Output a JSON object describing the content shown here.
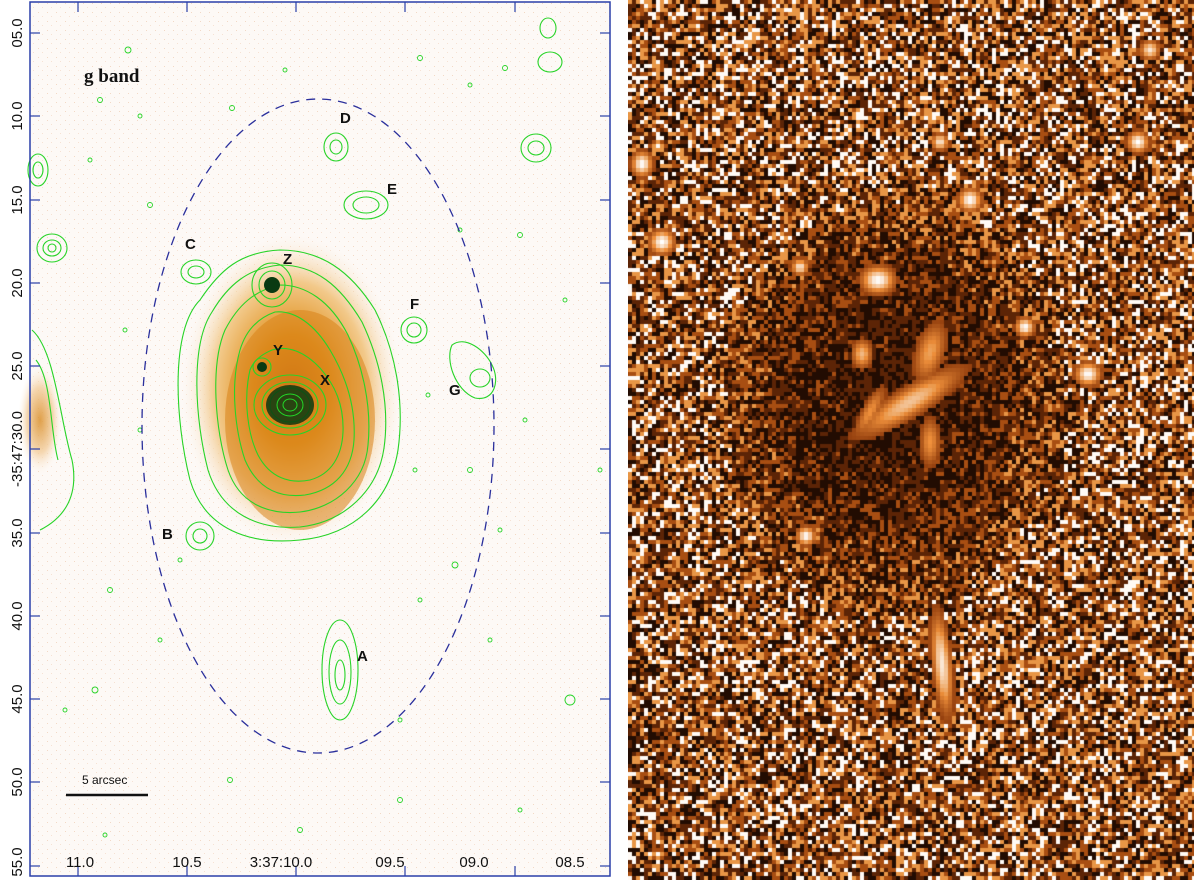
{
  "left_panel": {
    "band_label": "g band",
    "scale_bar_label": "5 arcsec",
    "sources": [
      {
        "id": "A",
        "label": "A"
      },
      {
        "id": "B",
        "label": "B"
      },
      {
        "id": "C",
        "label": "C"
      },
      {
        "id": "D",
        "label": "D"
      },
      {
        "id": "E",
        "label": "E"
      },
      {
        "id": "F",
        "label": "F"
      },
      {
        "id": "G",
        "label": "G"
      },
      {
        "id": "X",
        "label": "X"
      },
      {
        "id": "Y",
        "label": "Y"
      },
      {
        "id": "Z",
        "label": "Z"
      }
    ],
    "y_ticks": [
      "05.0",
      "10.0",
      "15.0",
      "20.0",
      "25.0",
      "-35:47:30.0",
      "35.0",
      "40.0",
      "45.0",
      "50.0",
      "55.0"
    ],
    "x_ticks": [
      "11.0",
      "10.5",
      "3:37:10.0",
      "09.5",
      "09.0",
      "08.5"
    ],
    "colors": {
      "contour": "#27d427",
      "ellipse": "#2a2f9c",
      "frame": "#2a3fa8",
      "core": "#0a3a12"
    }
  },
  "right_panel": {
    "colors": {
      "dark": "#2a0e00",
      "mid": "#c0661a",
      "bright": "#ffffff"
    }
  }
}
